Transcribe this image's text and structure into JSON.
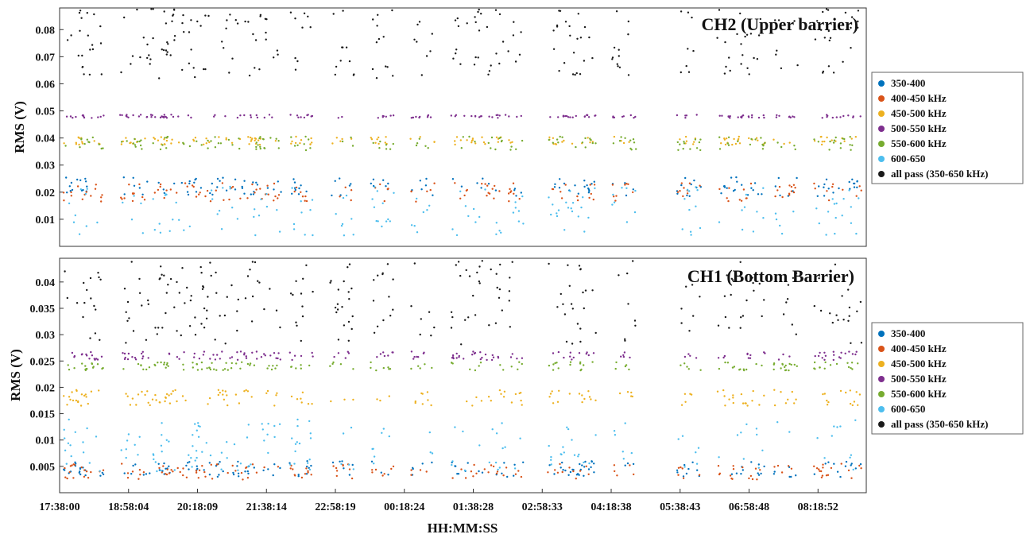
{
  "chart_data": {
    "type": "scatter",
    "xlabel": "HH:MM:SS",
    "x_ticks": [
      "17:38:00",
      "18:58:04",
      "20:18:09",
      "21:38:14",
      "22:58:19",
      "00:18:24",
      "01:38:28",
      "02:58:33",
      "04:18:38",
      "05:38:43",
      "06:58:48",
      "08:18:52"
    ],
    "colors": {
      "350-400": "#0072bd",
      "400-450 kHz": "#d95319",
      "450-500 kHz": "#edb120",
      "500-550 kHz": "#7e2f8e",
      "550-600 kHz": "#77ac30",
      "600-650": "#4dbeee",
      "all pass (350-650 kHz)": "#1a1a1a"
    },
    "panels": [
      {
        "title": "CH2 (Upper barrier)",
        "ylabel": "RMS (V)",
        "ylim": [
          0.0,
          0.088
        ],
        "y_ticks": [
          "0.01",
          "0.02",
          "0.03",
          "0.04",
          "0.05",
          "0.06",
          "0.07",
          "0.08"
        ],
        "y_tick_values": [
          0.01,
          0.02,
          0.03,
          0.04,
          0.05,
          0.06,
          0.07,
          0.08
        ],
        "legend": [
          "350-400",
          "400-450 kHz",
          "450-500 kHz",
          "500-550 kHz",
          "550-600 kHz",
          "600-650",
          "all pass (350-650 kHz)"
        ],
        "series": [
          {
            "name": "350-400",
            "level": 0.022,
            "spread": 0.0035
          },
          {
            "name": "400-450 kHz",
            "level": 0.02,
            "spread": 0.0035
          },
          {
            "name": "450-500 kHz",
            "level": 0.039,
            "spread": 0.0015
          },
          {
            "name": "500-550 kHz",
            "level": 0.048,
            "spread": 0.0006
          },
          {
            "name": "550-600 kHz",
            "level": 0.038,
            "spread": 0.0025
          },
          {
            "name": "600-650",
            "level": 0.013,
            "spread": 0.009
          },
          {
            "name": "all pass (350-650 kHz)",
            "level": 0.075,
            "spread": 0.013
          }
        ]
      },
      {
        "title": "CH1 (Bottom Barrier)",
        "ylabel": "RMS (V)",
        "ylim": [
          0.0,
          0.0445
        ],
        "y_ticks": [
          "0.005",
          "0.01",
          "0.015",
          "0.02",
          "0.025",
          "0.03",
          "0.035",
          "0.04"
        ],
        "y_tick_values": [
          0.005,
          0.01,
          0.015,
          0.02,
          0.025,
          0.03,
          0.035,
          0.04
        ],
        "legend": [
          "350-400",
          "400-450 kHz",
          "450-500 kHz",
          "500-550 kHz",
          "550-600 kHz",
          "600-650",
          "all pass (350-650 kHz)"
        ],
        "series": [
          {
            "name": "350-400",
            "level": 0.0045,
            "spread": 0.0015
          },
          {
            "name": "400-450 kHz",
            "level": 0.004,
            "spread": 0.0015
          },
          {
            "name": "450-500 kHz",
            "level": 0.018,
            "spread": 0.0015
          },
          {
            "name": "500-550 kHz",
            "level": 0.026,
            "spread": 0.0008
          },
          {
            "name": "550-600 kHz",
            "level": 0.024,
            "spread": 0.0008
          },
          {
            "name": "600-650",
            "level": 0.009,
            "spread": 0.005
          },
          {
            "name": "all pass (350-650 kHz)",
            "level": 0.036,
            "spread": 0.008
          }
        ]
      }
    ]
  }
}
